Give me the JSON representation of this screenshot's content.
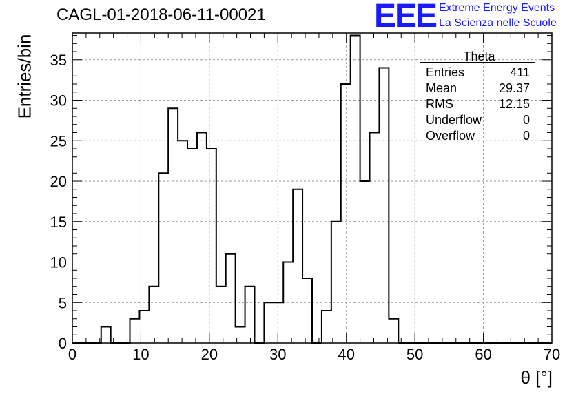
{
  "title": "CAGL-01-2018-06-11-00021",
  "logo": {
    "mark": "EEE",
    "line1": "Extreme Energy Events",
    "line2": "La Scienza nelle Scuole",
    "color": "#1a1aff"
  },
  "stats": {
    "name": "Theta",
    "rows": [
      {
        "label": "Entries",
        "value": "411"
      },
      {
        "label": "Mean",
        "value": "29.37"
      },
      {
        "label": "RMS",
        "value": "12.15"
      },
      {
        "label": "Underflow",
        "value": "0"
      },
      {
        "label": "Overflow",
        "value": "0"
      }
    ]
  },
  "chart_data": {
    "type": "histogram",
    "title": "CAGL-01-2018-06-11-00021",
    "xlabel": "θ [°]",
    "ylabel": "Entries/bin",
    "xlim": [
      0,
      70
    ],
    "ylim": [
      0,
      38.3
    ],
    "xticks": [
      0,
      10,
      20,
      30,
      40,
      50,
      60,
      70
    ],
    "yticks": [
      0,
      5,
      10,
      15,
      20,
      25,
      30,
      35
    ],
    "grid": true,
    "bin_edges_start": 0.0,
    "bin_width": 1.4,
    "counts": [
      0,
      0,
      0,
      2,
      0,
      0,
      3,
      4,
      7,
      21,
      29,
      25,
      24,
      26,
      24,
      7,
      11,
      2,
      7,
      0,
      5,
      5,
      10,
      19,
      8,
      0,
      4,
      15,
      32,
      38,
      20,
      26,
      34,
      3,
      0,
      0,
      0,
      0,
      0,
      0,
      0,
      0,
      0,
      0,
      0,
      0,
      0,
      0,
      0,
      0
    ]
  }
}
